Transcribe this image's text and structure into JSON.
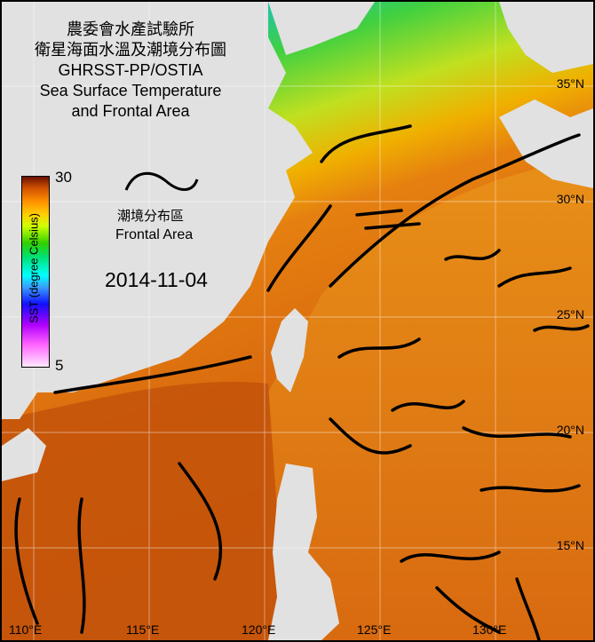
{
  "title": {
    "line1": "農委會水產試驗所",
    "line2": "衛星海面水溫及潮境分布圖",
    "line3": "GHRSST-PP/OSTIA",
    "line4": "Sea Surface Temperature",
    "line5": "and Frontal Area"
  },
  "colorbar": {
    "max": "30",
    "min": "5",
    "label": "SST (degree Celsius)",
    "colors": [
      "#ffe8ff",
      "#ff60ff",
      "#b000ff",
      "#1010ff",
      "#00ffff",
      "#00e070",
      "#30d000",
      "#d0ff00",
      "#ffd000",
      "#ff9000",
      "#d05000",
      "#6a1000"
    ]
  },
  "legend": {
    "front_zh": "潮境分布區",
    "front_en": "Frontal Area"
  },
  "date": "2014-11-04",
  "latitude_labels": [
    "35°N",
    "30°N",
    "25°N",
    "20°N",
    "15°N"
  ],
  "longitude_labels": [
    "110°E",
    "115°E",
    "120°E",
    "125°E",
    "130°E"
  ],
  "colors": {
    "land": "#e1e1e1",
    "front": "#000000",
    "warm_sea": "#d8680e",
    "cold_sea": "#3a7cff"
  }
}
